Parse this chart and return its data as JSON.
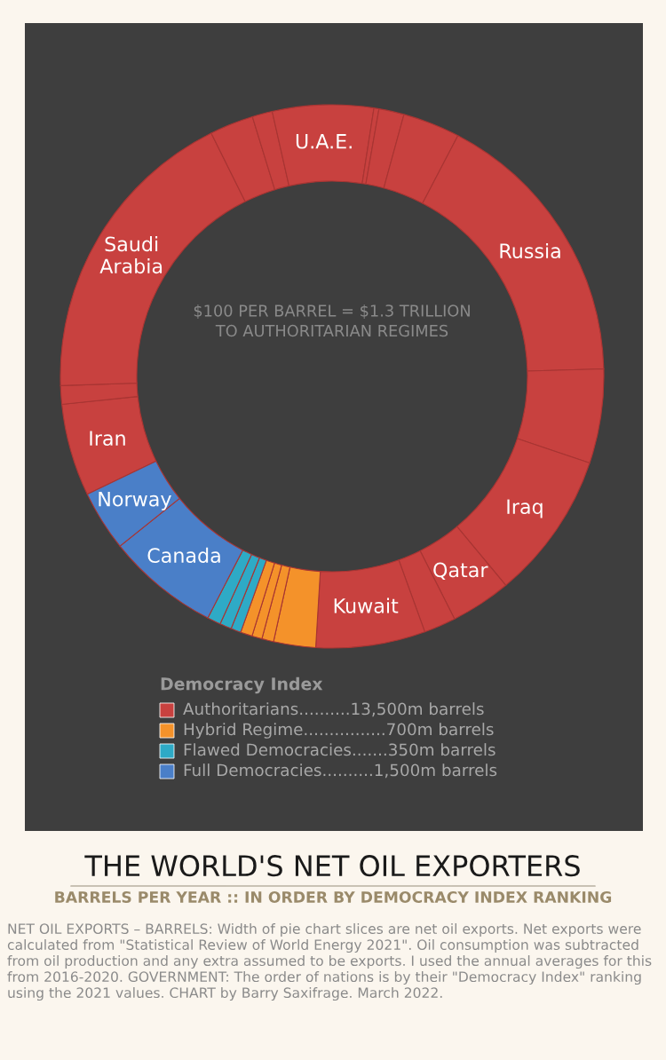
{
  "chart_data": {
    "type": "donut",
    "title": "THE WORLD'S NET OIL EXPORTERS",
    "subtitle": "BARRELS PER YEAR :: IN ORDER BY DEMOCRACY INDEX RANKING",
    "legend_title": "Democracy Index",
    "categories": [
      "Iran",
      null,
      "Saudi\nArabia",
      null,
      null,
      "U.A.E.",
      null,
      null,
      null,
      "Russia",
      null,
      "Iraq",
      "Qatar",
      null,
      "Kuwait",
      null,
      null,
      null,
      null,
      null,
      null,
      null,
      "Canada",
      "Norway"
    ],
    "values": [
      5.5,
      1.1,
      18.2,
      2.6,
      1.2,
      6.0,
      0.3,
      1.5,
      3.4,
      16.9,
      5.6,
      8.8,
      3.6,
      1.9,
      6.5,
      2.5,
      0.7,
      0.6,
      0.7,
      0.6,
      0.7,
      0.8,
      6.7,
      3.6
    ],
    "colors": [
      "#c8413f",
      "#c8413f",
      "#c8413f",
      "#c8413f",
      "#c8413f",
      "#c8413f",
      "#c8413f",
      "#c8413f",
      "#c8413f",
      "#c8413f",
      "#c8413f",
      "#c8413f",
      "#c8413f",
      "#c8413f",
      "#c8413f",
      "#f4922a",
      "#f4922a",
      "#f4922a",
      "#f4922a",
      "#2eaac6",
      "#2eaac6",
      "#2eaac6",
      "#4a7fc8",
      "#4a7fc8"
    ],
    "annotations": [
      "$100 PER BARREL = $1.3 TRILLION\nTO AUTHORITARIAN REGIMES",
      "Authoritarians..........13,500m barrels",
      "Hybrid Regime................700m barrels",
      "Flawed Democracies.......350m barrels",
      "Full Democracies..........1,500m barrels",
      "NET OIL EXPORTS – BARRELS: Width of pie chart slices are net oil exports. Net exports were calculated from \"Statistical Review of World Energy 2021\". Oil consumption was subtracted from oil production and any extra assumed to be exports. I used the annual averages for this from 2016-2020. GOVERNMENT: The order of nations is by their \"Democracy Index\" ranking using the 2021 values. CHART by Barry Saxifrage. March 2022."
    ]
  }
}
